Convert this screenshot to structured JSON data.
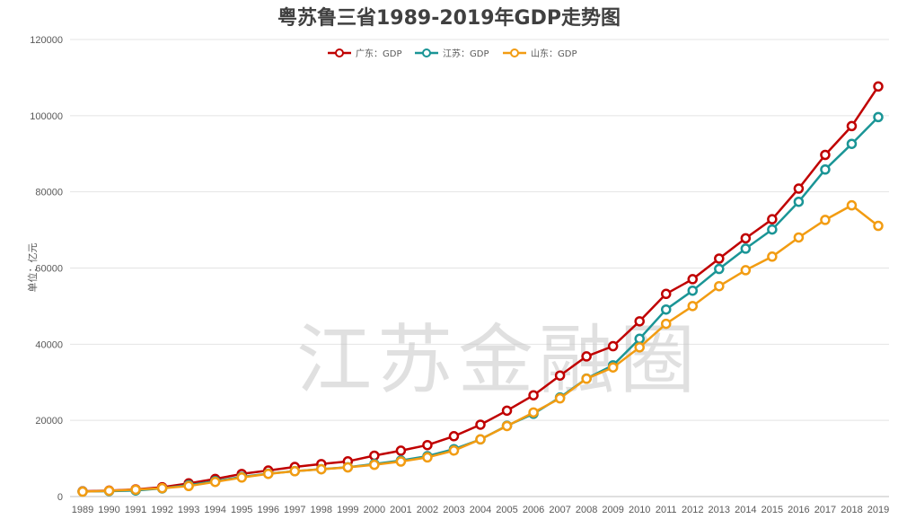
{
  "chart_data": {
    "type": "line",
    "title": "粤苏鲁三省1989-2019年GDP走势图",
    "ylabel": "单位：亿元",
    "xlabel": "",
    "ylim": [
      0,
      120000
    ],
    "yticks": [
      0,
      20000,
      40000,
      60000,
      80000,
      100000,
      120000
    ],
    "grid": true,
    "legend": "top-center",
    "x": [
      "1989",
      "1990",
      "1991",
      "1992",
      "1993",
      "1994",
      "1995",
      "1996",
      "1997",
      "1998",
      "1999",
      "2000",
      "2001",
      "2002",
      "2003",
      "2004",
      "2005",
      "2006",
      "2007",
      "2008",
      "2009",
      "2010",
      "2011",
      "2012",
      "2013",
      "2014",
      "2015",
      "2016",
      "2017",
      "2018",
      "2019"
    ],
    "series": [
      {
        "name": "广东：GDP",
        "color": "#c00000",
        "values": [
          1381,
          1559,
          1893,
          2448,
          3469,
          4619,
          5933,
          6835,
          7775,
          8531,
          9251,
          10741,
          12039,
          13502,
          15845,
          18864,
          22557,
          26588,
          31777,
          36797,
          39483,
          46013,
          53210,
          57068,
          62475,
          67810,
          72813,
          80855,
          89705,
          97278,
          107671
        ]
      },
      {
        "name": "江苏：GDP",
        "color": "#1a9596",
        "values": [
          1321,
          1417,
          1601,
          2136,
          2998,
          4057,
          5155,
          6004,
          6680,
          7200,
          7697,
          8554,
          9457,
          10607,
          12443,
          15004,
          18599,
          21742,
          26018,
          30982,
          34457,
          41425,
          49110,
          54058,
          59753,
          65088,
          70116,
          77388,
          85870,
          92595,
          99632
        ]
      },
      {
        "name": "山东：GDP",
        "color": "#f29c12",
        "values": [
          1293,
          1511,
          1810,
          2197,
          2770,
          3844,
          5003,
          5960,
          6650,
          7162,
          7662,
          8337,
          9195,
          10276,
          12078,
          15022,
          18517,
          22077,
          25777,
          30933,
          33897,
          39170,
          45362,
          50013,
          55230,
          59427,
          63002,
          68024,
          72634,
          76470,
          71067
        ]
      }
    ]
  },
  "watermark": "江苏金融圈"
}
